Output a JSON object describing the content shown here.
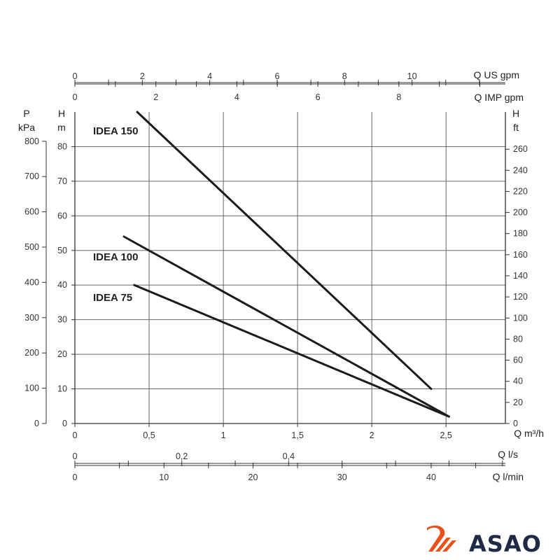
{
  "chart_data": {
    "type": "line",
    "x_label_main": "Q m³/h",
    "x_ticks_main": [
      "0",
      "0,5",
      "1",
      "1,5",
      "2",
      "2,5"
    ],
    "xlim": [
      0,
      2.9
    ],
    "ylim": [
      0,
      90
    ],
    "left_h_unit": "H",
    "left_h_subunit": "m",
    "left_h_ticks": [
      "0",
      "10",
      "20",
      "30",
      "40",
      "50",
      "60",
      "70",
      "80"
    ],
    "left_p_unit": "P",
    "left_p_subunit": "kPa",
    "left_p_ticks": [
      "0",
      "100",
      "200",
      "300",
      "400",
      "500",
      "600",
      "700",
      "800"
    ],
    "right_unit": "H",
    "right_subunit": "ft",
    "right_ticks": [
      "0",
      "20",
      "40",
      "60",
      "80",
      "100",
      "120",
      "140",
      "160",
      "180",
      "200",
      "220",
      "240",
      "260"
    ],
    "top_axis_1_label": "Q US gpm",
    "top_axis_1_ticks": [
      "0",
      "2",
      "4",
      "6",
      "8",
      "10"
    ],
    "top_axis_2_label": "Q IMP gpm",
    "top_axis_2_ticks": [
      "0",
      "2",
      "4",
      "6",
      "8"
    ],
    "bottom_axis_1_label": "Q l/s",
    "bottom_axis_1_ticks": [
      "0",
      "0,2",
      "0,4"
    ],
    "bottom_axis_2_label": "Q l/min",
    "bottom_axis_2_ticks": [
      "0",
      "10",
      "20",
      "30",
      "40"
    ],
    "grid": true,
    "legend": "inline labels",
    "series": [
      {
        "name": "IDEA 150",
        "points": [
          [
            0.42,
            90
          ],
          [
            2.4,
            10
          ]
        ]
      },
      {
        "name": "IDEA 100",
        "points": [
          [
            0.33,
            54
          ],
          [
            2.52,
            2
          ]
        ]
      },
      {
        "name": "IDEA 75",
        "points": [
          [
            0.4,
            40
          ],
          [
            2.52,
            2
          ]
        ]
      }
    ]
  },
  "logo": {
    "text": "ASAO",
    "accent_color": "#e8511c",
    "text_color": "#1f2a44"
  }
}
